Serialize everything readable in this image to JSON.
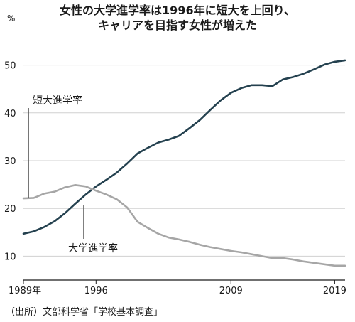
{
  "title_lines": [
    "女性の大学進学率は1996年に短大を上回り、",
    "キャリアを目指す女性が増えた"
  ],
  "source": "（出所）文部科学省「学校基本調査」",
  "chart_data": {
    "type": "line",
    "title": "女性の大学進学率は1996年に短大を上回り、キャリアを目指す女性が増えた",
    "y_unit": "%",
    "ylim": [
      5,
      55
    ],
    "xlim": [
      1989,
      2020
    ],
    "yticks": [
      10,
      20,
      30,
      40,
      50
    ],
    "xticks": [
      {
        "value": 1989,
        "label": "1989年"
      },
      {
        "value": 1996,
        "label": "1996"
      },
      {
        "value": 2009,
        "label": "2009"
      },
      {
        "value": 2019,
        "label": "2019"
      }
    ],
    "grid": "horizontal",
    "series": [
      {
        "name": "大学進学率",
        "color": "#24414f",
        "x": [
          1989,
          1990,
          1991,
          1992,
          1993,
          1994,
          1995,
          1996,
          1997,
          1998,
          1999,
          2000,
          2001,
          2002,
          2003,
          2004,
          2005,
          2006,
          2007,
          2008,
          2009,
          2010,
          2011,
          2012,
          2013,
          2014,
          2015,
          2016,
          2017,
          2018,
          2019,
          2020
        ],
        "y": [
          14.7,
          15.2,
          16.1,
          17.3,
          19.0,
          21.0,
          22.9,
          24.6,
          26.0,
          27.5,
          29.4,
          31.5,
          32.7,
          33.8,
          34.4,
          35.2,
          36.8,
          38.5,
          40.6,
          42.6,
          44.2,
          45.2,
          45.8,
          45.8,
          45.6,
          47.0,
          47.5,
          48.2,
          49.1,
          50.1,
          50.7,
          51.0
        ]
      },
      {
        "name": "短大進学率",
        "color": "#a6a6a6",
        "x": [
          1989,
          1990,
          1991,
          1992,
          1993,
          1994,
          1995,
          1996,
          1997,
          1998,
          1999,
          2000,
          2001,
          2002,
          2003,
          2004,
          2005,
          2006,
          2007,
          2008,
          2009,
          2010,
          2011,
          2012,
          2013,
          2014,
          2015,
          2016,
          2017,
          2018,
          2019,
          2020
        ],
        "y": [
          22.1,
          22.2,
          23.1,
          23.5,
          24.4,
          24.9,
          24.6,
          23.7,
          22.9,
          21.9,
          20.2,
          17.2,
          15.9,
          14.7,
          13.9,
          13.5,
          13.0,
          12.4,
          11.9,
          11.5,
          11.1,
          10.8,
          10.4,
          10.0,
          9.6,
          9.6,
          9.3,
          8.9,
          8.6,
          8.3,
          8.0,
          8.0
        ]
      }
    ]
  }
}
